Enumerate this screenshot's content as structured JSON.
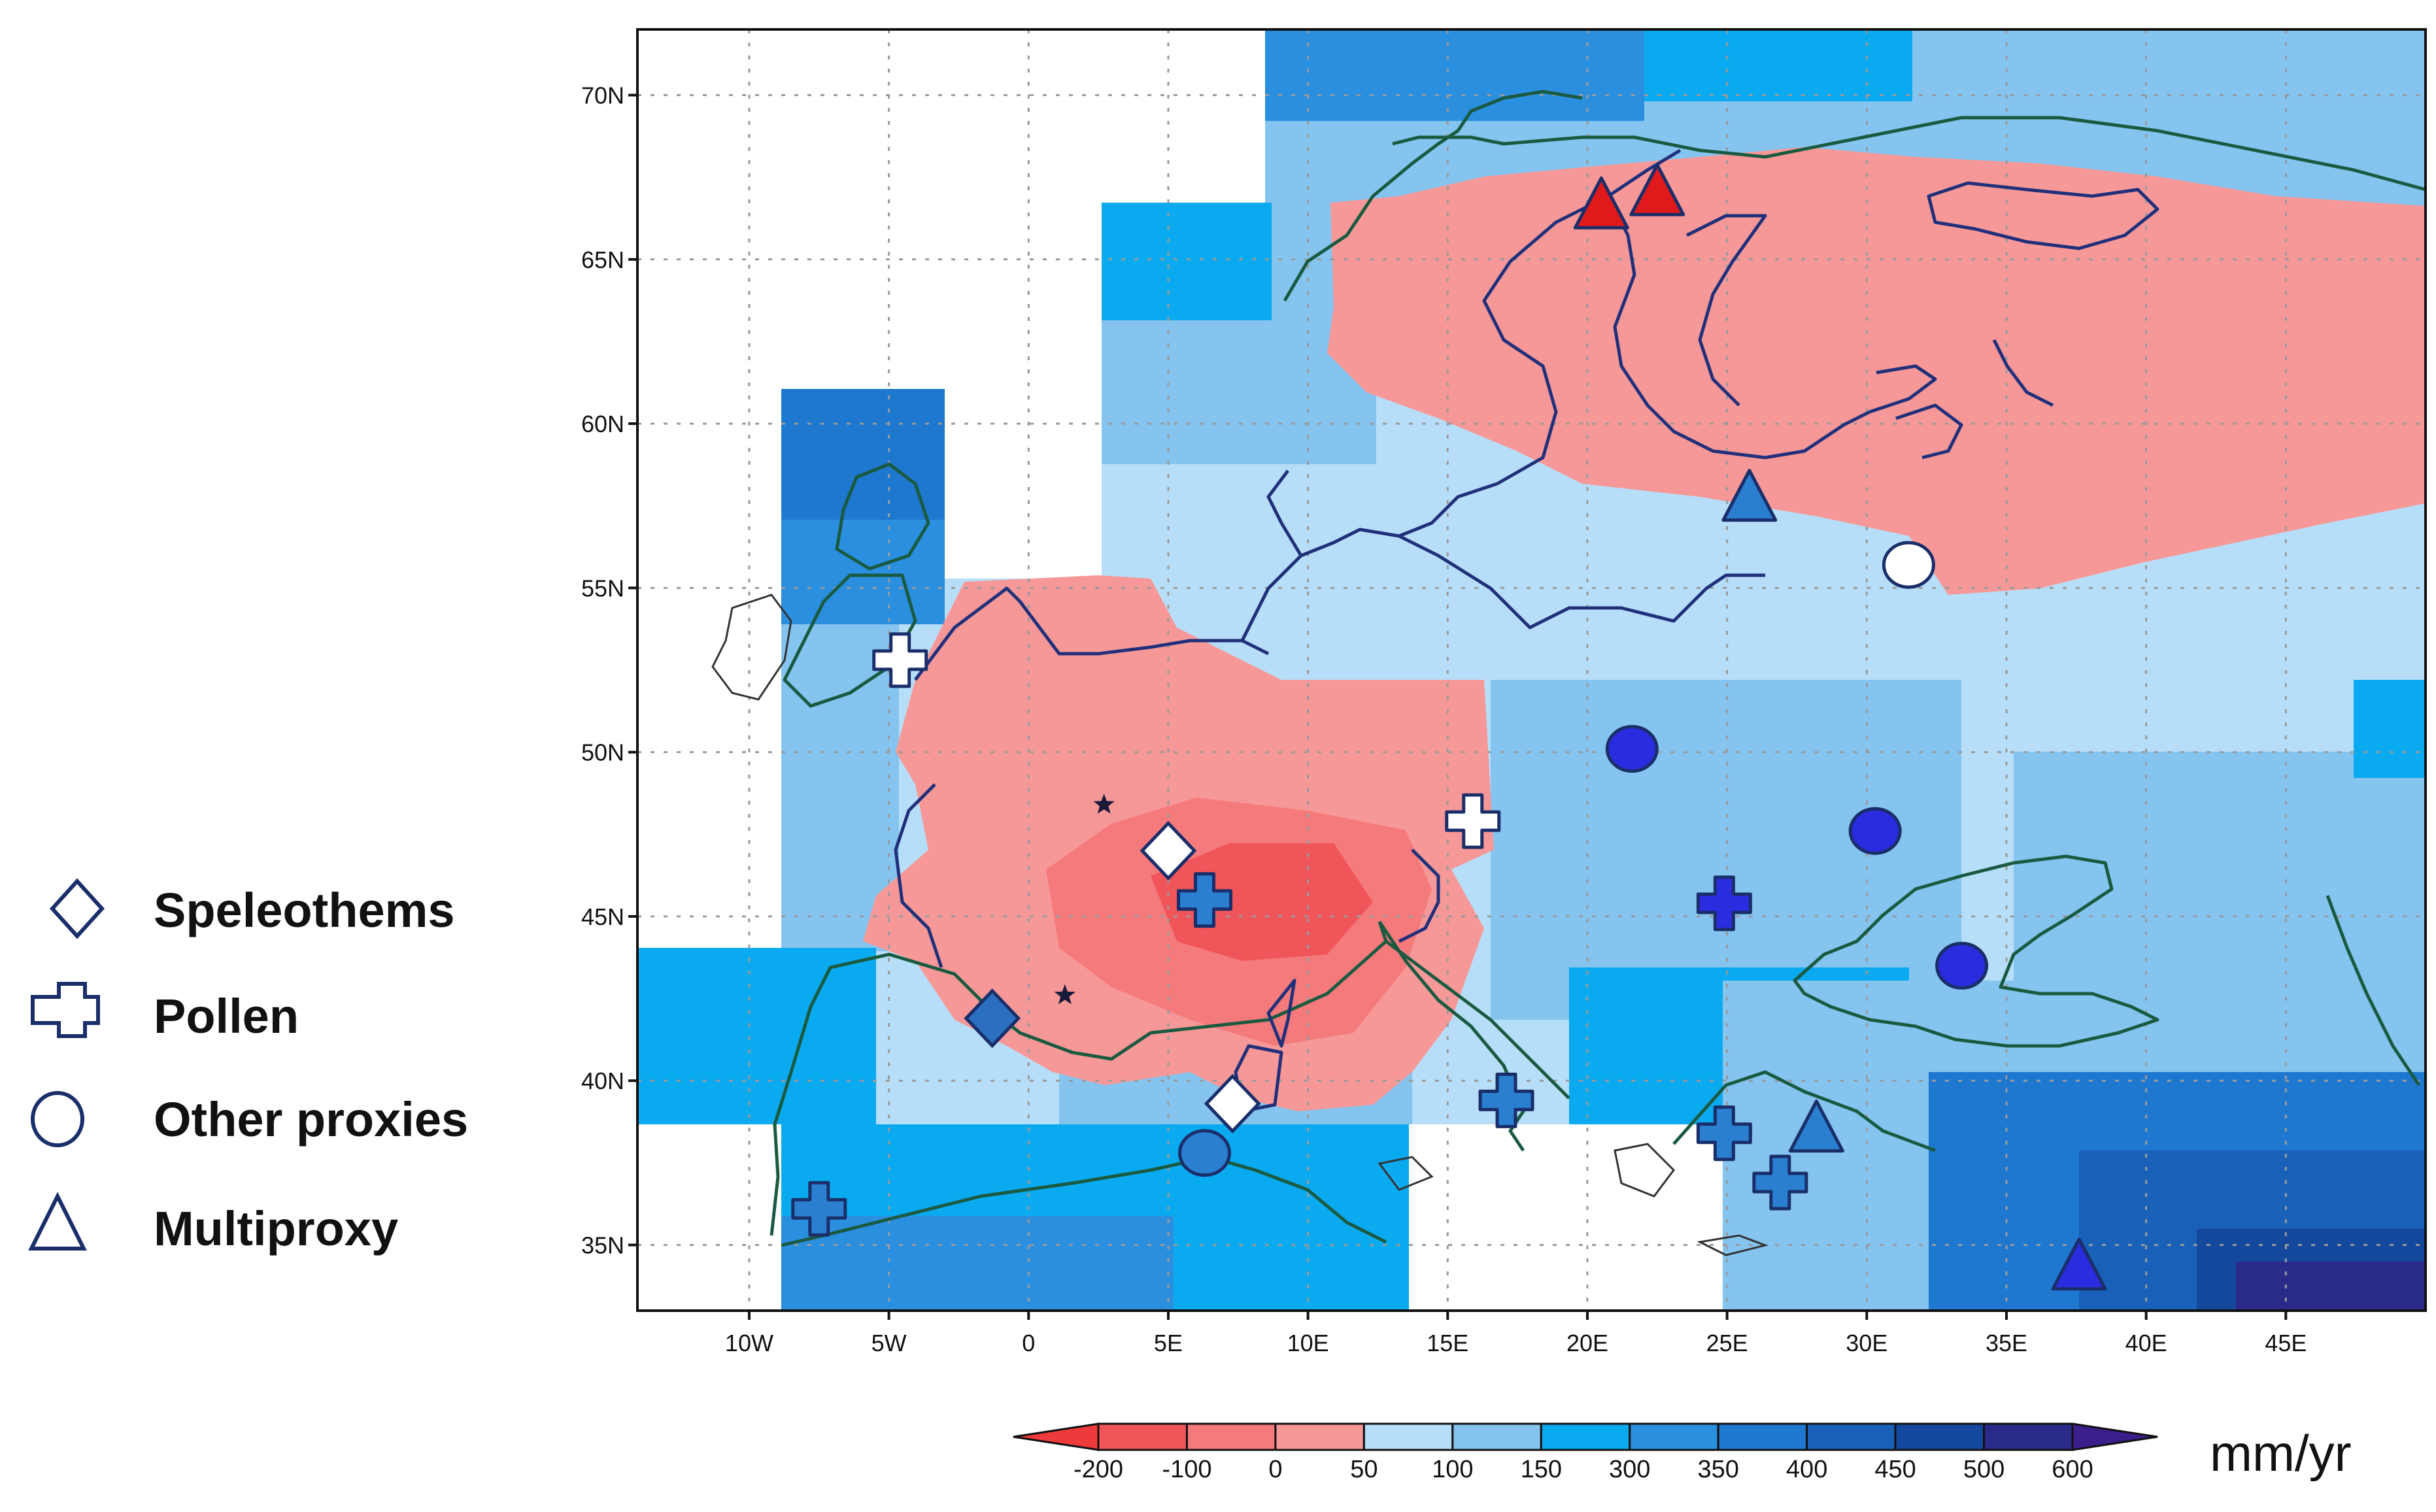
{
  "map": {
    "extent": {
      "lon": [
        -14,
        50
      ],
      "lat": [
        33,
        72
      ]
    },
    "lat_labels": [
      {
        "lat": 70,
        "label": "70N"
      },
      {
        "lat": 65,
        "label": "65N"
      },
      {
        "lat": 60,
        "label": "60N"
      },
      {
        "lat": 55,
        "label": "55N"
      },
      {
        "lat": 50,
        "label": "50N"
      },
      {
        "lat": 45,
        "label": "45N"
      },
      {
        "lat": 40,
        "label": "40N"
      },
      {
        "lat": 35,
        "label": "35N"
      }
    ],
    "lon_labels": [
      {
        "lon": -10,
        "label": "10W"
      },
      {
        "lon": -5,
        "label": "5W"
      },
      {
        "lon": 0,
        "label": "0"
      },
      {
        "lon": 5,
        "label": "5E"
      },
      {
        "lon": 10,
        "label": "10E"
      },
      {
        "lon": 15,
        "label": "15E"
      },
      {
        "lon": 20,
        "label": "20E"
      },
      {
        "lon": 25,
        "label": "25E"
      },
      {
        "lon": 30,
        "label": "30E"
      },
      {
        "lon": 35,
        "label": "35E"
      },
      {
        "lon": 40,
        "label": "40E"
      },
      {
        "lon": 45,
        "label": "45E"
      }
    ],
    "colors": {
      "neg_strong": "#f0555a",
      "neg_mid": "#f57a7c",
      "neg_light": "#f79898",
      "b1": "#b7def8",
      "b2": "#84c4ee",
      "b3": "#0aaaf0",
      "b4": "#2b8fe0",
      "b5": "#1e78d0",
      "b6": "#1860b8",
      "b7": "#14489c",
      "b8": "#2a2a8a",
      "coast": "#1a5a40",
      "border": "#20307a",
      "missing": "#ffffff"
    },
    "sites": [
      {
        "type": "speleothem",
        "lon": 5,
        "lat": 47,
        "fill": "#ffffff"
      },
      {
        "type": "speleothem",
        "lon": -1.3,
        "lat": 41.9,
        "fill": "#2a6fc0"
      },
      {
        "type": "speleothem",
        "lon": 7.3,
        "lat": 39.3,
        "fill": "#ffffff"
      },
      {
        "type": "pollen",
        "lon": -4.6,
        "lat": 52.8,
        "fill": "#ffffff"
      },
      {
        "type": "pollen",
        "lon": 6.3,
        "lat": 45.5,
        "fill": "#2a7fd0"
      },
      {
        "type": "pollen",
        "lon": 15.9,
        "lat": 47.9,
        "fill": "#ffffff"
      },
      {
        "type": "pollen",
        "lon": 17.1,
        "lat": 39.4,
        "fill": "#2a7fd0"
      },
      {
        "type": "pollen",
        "lon": 24.9,
        "lat": 45.4,
        "fill": "#2b2be0"
      },
      {
        "type": "pollen",
        "lon": 24.9,
        "lat": 38.4,
        "fill": "#2a7fd0"
      },
      {
        "type": "pollen",
        "lon": 26.9,
        "lat": 36.9,
        "fill": "#2a7fd0"
      },
      {
        "type": "pollen",
        "lon": -7.5,
        "lat": 36.1,
        "fill": "#2a7fd0"
      },
      {
        "type": "other",
        "lon": 21.6,
        "lat": 50.1,
        "fill": "#2b2be0"
      },
      {
        "type": "other",
        "lon": 30.3,
        "lat": 47.6,
        "fill": "#2b2be0"
      },
      {
        "type": "other",
        "lon": 33.4,
        "lat": 43.5,
        "fill": "#2b2be0"
      },
      {
        "type": "other",
        "lon": 31.5,
        "lat": 55.7,
        "fill": "#ffffff"
      },
      {
        "type": "other",
        "lon": 6.3,
        "lat": 37.8,
        "fill": "#2a7fd0"
      },
      {
        "type": "multiproxy",
        "lon": 20.5,
        "lat": 66.6,
        "fill": "#e01a1a"
      },
      {
        "type": "multiproxy",
        "lon": 22.5,
        "lat": 67.0,
        "fill": "#e01a1a"
      },
      {
        "type": "multiproxy",
        "lon": 25.8,
        "lat": 57.7,
        "fill": "#2a7fd0"
      },
      {
        "type": "multiproxy",
        "lon": 28.2,
        "lat": 38.5,
        "fill": "#2a7fd0"
      },
      {
        "type": "multiproxy",
        "lon": 37.6,
        "lat": 34.3,
        "fill": "#2b2be0"
      }
    ],
    "stars": [
      {
        "lon": 2.7,
        "lat": 48.4
      },
      {
        "lon": 1.3,
        "lat": 42.6
      }
    ]
  },
  "legend": {
    "items": [
      {
        "symbol": "diamond",
        "label": "Speleothems"
      },
      {
        "symbol": "cross",
        "label": "Pollen"
      },
      {
        "symbol": "circle",
        "label": "Other proxies"
      },
      {
        "symbol": "triangle",
        "label": "Multiproxy"
      }
    ]
  },
  "colorbar": {
    "unit": "mm/yr",
    "labels": [
      "-200",
      "-100",
      "0",
      "50",
      "100",
      "150",
      "300",
      "350",
      "400",
      "450",
      "500",
      "600"
    ],
    "colors": [
      "#f0555a",
      "#f57a7c",
      "#f79898",
      "#b7def8",
      "#84c4ee",
      "#0aaaf0",
      "#2b8fe0",
      "#1e78d0",
      "#1860b8",
      "#14489c",
      "#2a2a8a"
    ],
    "low_color": "#ee3a3a",
    "high_color": "#3a1e8a"
  }
}
